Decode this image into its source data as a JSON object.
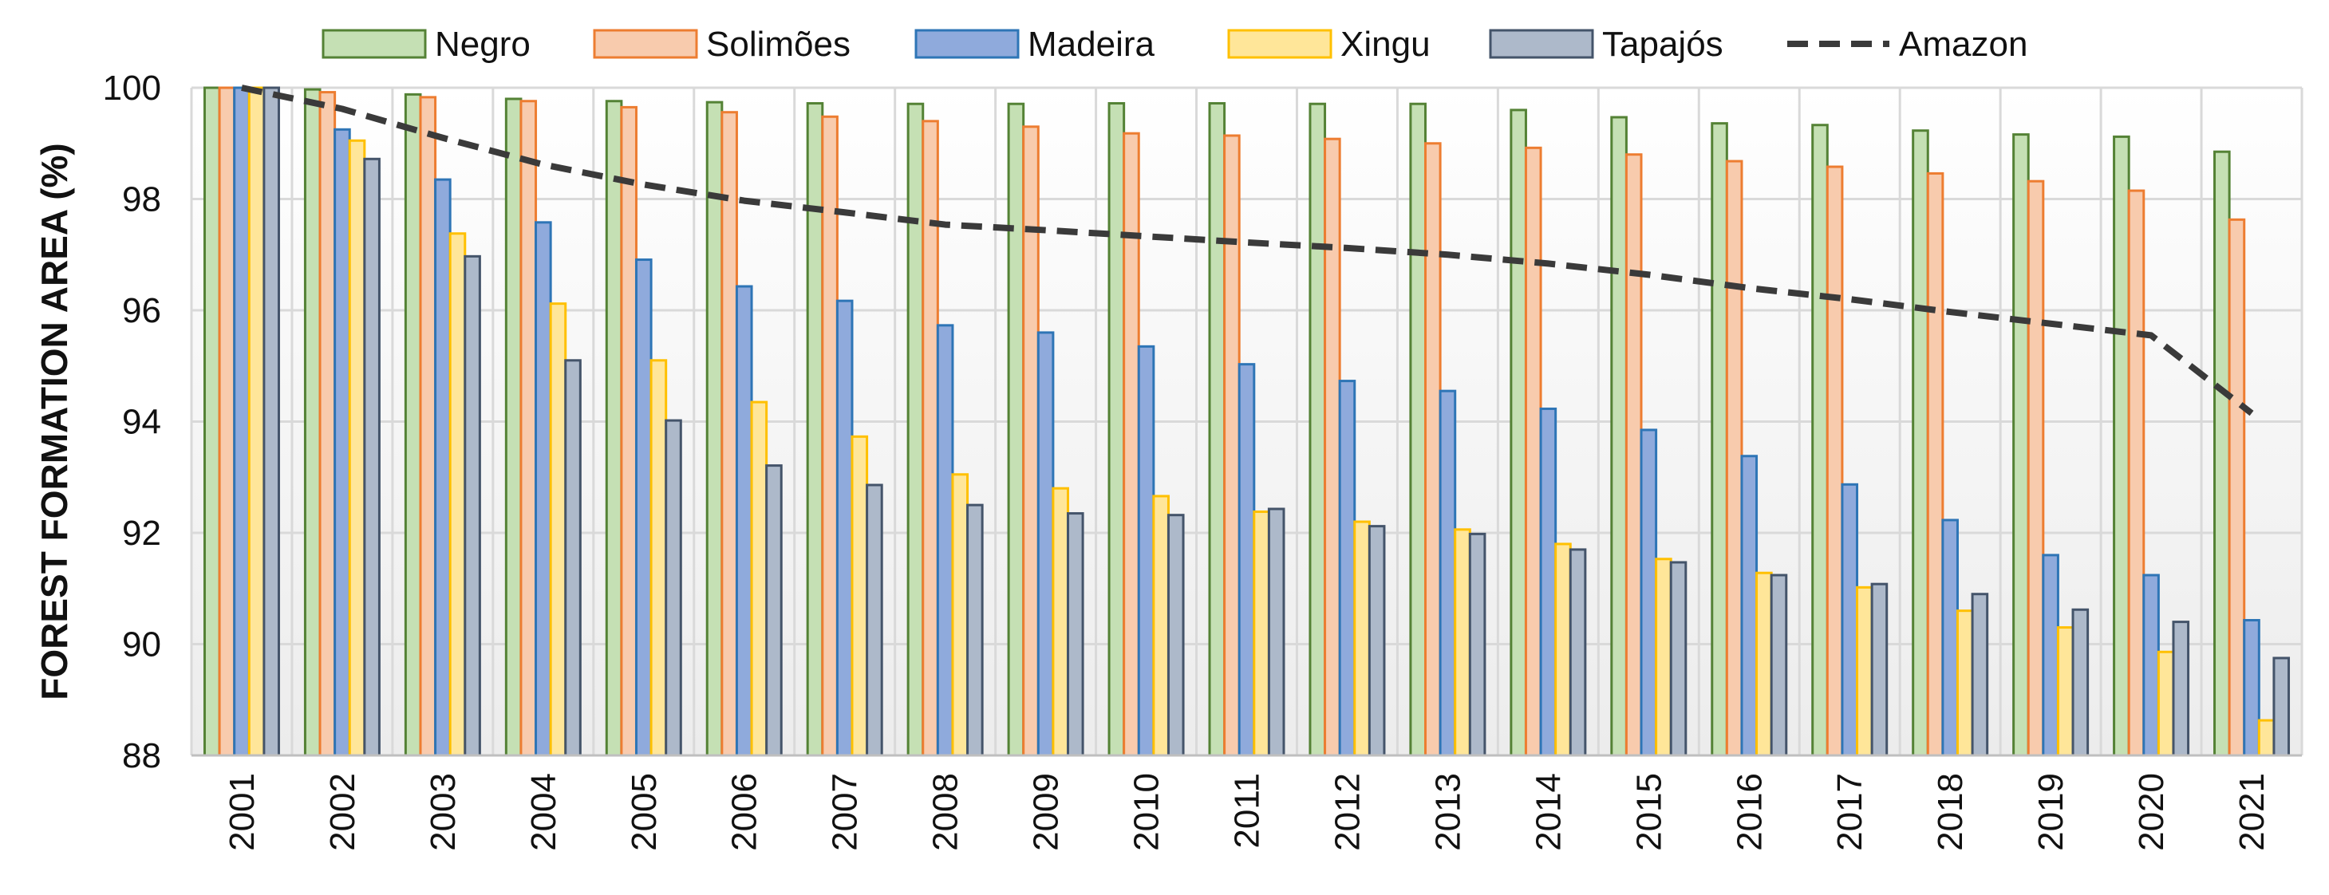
{
  "chart_data": {
    "type": "bar",
    "title": "",
    "xlabel": "",
    "ylabel": "FOREST FORMATION AREA (%)",
    "ylim": [
      88,
      100
    ],
    "yticks": [
      "88",
      "90",
      "92",
      "94",
      "96",
      "98",
      "100"
    ],
    "grid": true,
    "legend_position": "top",
    "categories": [
      "2001",
      "2002",
      "2003",
      "2004",
      "2005",
      "2006",
      "2007",
      "2008",
      "2009",
      "2010",
      "2011",
      "2012",
      "2013",
      "2014",
      "2015",
      "2016",
      "2017",
      "2018",
      "2019",
      "2020",
      "2021"
    ],
    "series": [
      {
        "name": "Negro",
        "type": "bar",
        "fill": "#c5e0b4",
        "stroke": "#548235",
        "values": [
          100,
          99.97,
          99.88,
          99.8,
          99.76,
          99.74,
          99.72,
          99.71,
          99.71,
          99.72,
          99.72,
          99.71,
          99.71,
          99.6,
          99.47,
          99.36,
          99.33,
          99.23,
          99.16,
          99.12,
          98.85
        ]
      },
      {
        "name": "Solimões",
        "type": "bar",
        "fill": "#f8cbad",
        "stroke": "#ed7d31",
        "values": [
          100,
          99.92,
          99.83,
          99.76,
          99.65,
          99.56,
          99.48,
          99.4,
          99.3,
          99.18,
          99.14,
          99.08,
          99.0,
          98.92,
          98.8,
          98.68,
          98.58,
          98.46,
          98.32,
          98.15,
          97.63
        ]
      },
      {
        "name": "Madeira",
        "type": "bar",
        "fill": "#8faadc",
        "stroke": "#2e75b6",
        "values": [
          100,
          99.25,
          98.35,
          97.58,
          96.91,
          96.43,
          96.17,
          95.73,
          95.6,
          95.35,
          95.03,
          94.73,
          94.55,
          94.23,
          93.85,
          93.38,
          92.87,
          92.23,
          91.6,
          91.24,
          90.43
        ]
      },
      {
        "name": "Xingu",
        "type": "bar",
        "fill": "#ffe699",
        "stroke": "#ffc000",
        "values": [
          100,
          99.05,
          97.38,
          96.12,
          95.1,
          94.35,
          93.73,
          93.05,
          92.8,
          92.66,
          92.38,
          92.2,
          92.06,
          91.8,
          91.53,
          91.28,
          91.02,
          90.6,
          90.3,
          89.86,
          88.63
        ]
      },
      {
        "name": "Tapajós",
        "type": "bar",
        "fill": "#adb9ca",
        "stroke": "#44546a",
        "values": [
          100,
          98.72,
          96.97,
          95.1,
          94.02,
          93.21,
          92.86,
          92.5,
          92.35,
          92.32,
          92.43,
          92.12,
          91.98,
          91.7,
          91.47,
          91.24,
          91.08,
          90.9,
          90.62,
          90.4,
          89.75
        ]
      },
      {
        "name": "Amazon",
        "type": "line",
        "stroke": "#3a3a3a",
        "dash": "dashed",
        "values": [
          100,
          99.62,
          99.1,
          98.62,
          98.26,
          97.97,
          97.76,
          97.54,
          97.44,
          97.33,
          97.22,
          97.12,
          97.0,
          96.84,
          96.64,
          96.4,
          96.2,
          95.97,
          95.76,
          95.55,
          94.15
        ]
      }
    ]
  }
}
